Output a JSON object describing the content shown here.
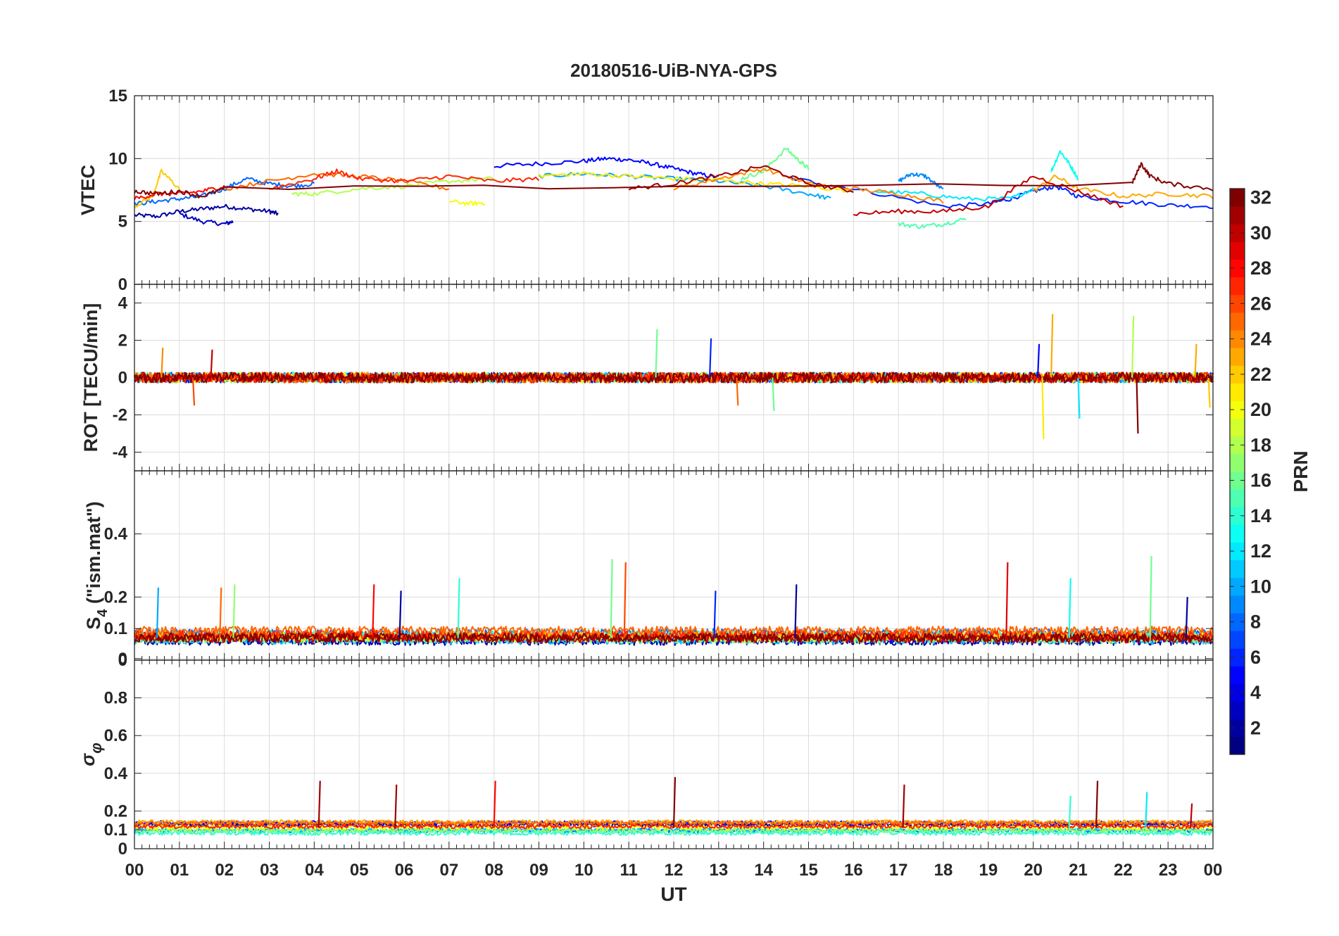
{
  "chart_data": {
    "type": "line",
    "title": "20180516-UiB-NYA-GPS",
    "xlabel": "UT",
    "x_ticks": [
      "00",
      "01",
      "02",
      "03",
      "04",
      "05",
      "06",
      "07",
      "08",
      "09",
      "10",
      "11",
      "12",
      "13",
      "14",
      "15",
      "16",
      "17",
      "18",
      "19",
      "20",
      "21",
      "22",
      "23",
      "00"
    ],
    "xlim": [
      0,
      24
    ],
    "grid": true,
    "colorbar": {
      "label": "PRN",
      "range": [
        1,
        32
      ],
      "colormap": "jet",
      "ticks": [
        "2",
        "4",
        "6",
        "8",
        "10",
        "12",
        "14",
        "16",
        "18",
        "20",
        "22",
        "24",
        "26",
        "28",
        "30",
        "32"
      ]
    },
    "panels": [
      {
        "id": "vtec",
        "ylabel": "VTEC",
        "ylim": [
          0,
          15
        ],
        "y_ticks": [
          "0",
          "5",
          "10",
          "15"
        ],
        "y_tick_values": [
          0,
          5,
          10,
          15
        ],
        "series": [
          {
            "prn": 2,
            "x": [
              0,
              0.5,
              1,
              1.5,
              2,
              2.5,
              3,
              3.2
            ],
            "y": [
              5.5,
              5.4,
              5.8,
              6.0,
              6.2,
              6.0,
              5.8,
              5.6
            ]
          },
          {
            "prn": 3,
            "x": [
              1,
              1.5,
              2,
              2.2
            ],
            "y": [
              5.6,
              5.0,
              4.8,
              5.0
            ]
          },
          {
            "prn": 5,
            "x": [
              8,
              9,
              10,
              10.5,
              11,
              11.5,
              12,
              12.5,
              13
            ],
            "y": [
              9.4,
              9.6,
              9.8,
              10.0,
              9.9,
              9.6,
              9.2,
              8.8,
              8.5
            ]
          },
          {
            "prn": 6,
            "x": [
              14.5,
              16,
              18,
              19,
              19.5,
              20,
              20.5,
              21,
              22,
              23,
              24
            ],
            "y": [
              8.5,
              7.6,
              6.2,
              6.4,
              6.8,
              7.4,
              7.8,
              7.0,
              6.6,
              6.3,
              6.2
            ]
          },
          {
            "prn": 8,
            "x": [
              0,
              0.5,
              1,
              1.5,
              2,
              2.5,
              3,
              3.5,
              4
            ],
            "y": [
              6.4,
              6.6,
              6.8,
              7.0,
              7.6,
              8.4,
              8.0,
              7.8,
              8.0
            ]
          },
          {
            "prn": 9,
            "x": [
              17,
              17.3,
              17.6,
              18
            ],
            "y": [
              8.2,
              8.8,
              8.6,
              7.5
            ]
          },
          {
            "prn": 10,
            "x": [
              9,
              10,
              11,
              12,
              13,
              14,
              15,
              15.5
            ],
            "y": [
              8.6,
              8.8,
              8.6,
              8.4,
              8.2,
              7.8,
              7.2,
              6.8
            ]
          },
          {
            "prn": 12,
            "x": [
              16.5,
              17.5,
              18.5,
              19.5,
              20
            ],
            "y": [
              7.4,
              7.2,
              6.8,
              6.8,
              7.6
            ]
          },
          {
            "prn": 13,
            "x": [
              20.4,
              20.6,
              20.8,
              21
            ],
            "y": [
              9.0,
              10.6,
              9.6,
              8.4
            ]
          },
          {
            "prn": 15,
            "x": [
              17,
              17.5,
              18,
              18.5
            ],
            "y": [
              4.8,
              4.6,
              4.8,
              5.2
            ]
          },
          {
            "prn": 16,
            "x": [
              13.5,
              14,
              14.5,
              14.8,
              15
            ],
            "y": [
              8.4,
              9.0,
              10.8,
              9.8,
              9.2
            ]
          },
          {
            "prn": 18,
            "x": [
              3.5,
              4,
              5,
              6,
              7,
              8
            ],
            "y": [
              7.2,
              7.2,
              7.6,
              7.8,
              8.2,
              8.4
            ]
          },
          {
            "prn": 20,
            "x": [
              7,
              7.5,
              7.8
            ],
            "y": [
              6.6,
              6.4,
              6.5
            ]
          },
          {
            "prn": 21,
            "x": [
              9,
              10,
              11,
              12,
              13,
              14,
              15,
              16
            ],
            "y": [
              8.6,
              8.8,
              8.6,
              8.4,
              8.3,
              8.0,
              7.8,
              7.4
            ]
          },
          {
            "prn": 22,
            "x": [
              0,
              0.4,
              0.6,
              1
            ],
            "y": [
              6.2,
              7.0,
              9.0,
              7.6
            ]
          },
          {
            "prn": 23,
            "x": [
              20,
              20.5,
              21,
              22,
              23,
              24
            ],
            "y": [
              7.4,
              8.6,
              7.6,
              7.0,
              7.2,
              7.0
            ]
          },
          {
            "prn": 24,
            "x": [
              12,
              13,
              14,
              15,
              16,
              17,
              18
            ],
            "y": [
              7.6,
              8.4,
              9.2,
              8.0,
              7.6,
              7.2,
              6.6
            ]
          },
          {
            "prn": 25,
            "x": [
              2,
              3,
              4,
              5,
              6,
              7
            ],
            "y": [
              7.6,
              8.2,
              8.8,
              8.6,
              8.2,
              7.6
            ]
          },
          {
            "prn": 27,
            "x": [
              3,
              4,
              4.5,
              5,
              6,
              7,
              8,
              9
            ],
            "y": [
              7.6,
              8.4,
              9.0,
              8.4,
              8.2,
              8.6,
              8.2,
              8.4
            ]
          },
          {
            "prn": 28,
            "x": [
              0,
              0.5,
              1,
              1.5,
              2
            ],
            "y": [
              6.8,
              7.2,
              7.2,
              7.4,
              7.8
            ]
          },
          {
            "prn": 30,
            "x": [
              16,
              17,
              18,
              19,
              20,
              21,
              22
            ],
            "y": [
              5.6,
              5.8,
              5.8,
              6.2,
              8.6,
              7.4,
              6.2
            ]
          },
          {
            "prn": 31,
            "x": [
              11,
              12,
              13,
              14,
              15,
              16
            ],
            "y": [
              7.6,
              8.0,
              8.6,
              9.4,
              8.0,
              7.4
            ]
          },
          {
            "prn": 32,
            "x": [
              0,
              0.5,
              1,
              1.5,
              2,
              22.2,
              22.4,
              22.6,
              23,
              24
            ],
            "y": [
              7.4,
              7.2,
              7.4,
              7.0,
              7.6,
              8.0,
              9.6,
              8.6,
              8.0,
              7.6
            ]
          }
        ]
      },
      {
        "id": "rot",
        "ylabel": "ROT [TECU/min]",
        "ylim": [
          -5,
          5
        ],
        "y_ticks": [
          "-4",
          "-2",
          "0",
          "2",
          "4"
        ],
        "y_tick_values": [
          -4,
          -2,
          0,
          2,
          4
        ],
        "spikes": [
          {
            "x": 0.6,
            "y": 1.6,
            "prn": 24
          },
          {
            "x": 1.3,
            "y": -1.5,
            "prn": 26
          },
          {
            "x": 1.7,
            "y": 1.5,
            "prn": 30
          },
          {
            "x": 11.6,
            "y": 2.6,
            "prn": 16
          },
          {
            "x": 12.8,
            "y": 2.1,
            "prn": 6
          },
          {
            "x": 13.4,
            "y": -1.5,
            "prn": 25
          },
          {
            "x": 14.2,
            "y": -1.8,
            "prn": 16
          },
          {
            "x": 20.1,
            "y": 1.8,
            "prn": 5
          },
          {
            "x": 20.2,
            "y": -3.3,
            "prn": 21
          },
          {
            "x": 20.4,
            "y": 3.4,
            "prn": 23
          },
          {
            "x": 21.0,
            "y": -2.2,
            "prn": 12
          },
          {
            "x": 22.2,
            "y": 3.3,
            "prn": 18
          },
          {
            "x": 22.3,
            "y": -3.0,
            "prn": 32
          },
          {
            "x": 23.6,
            "y": 1.8,
            "prn": 23
          },
          {
            "x": 23.9,
            "y": -1.6,
            "prn": 22
          }
        ]
      },
      {
        "id": "s4",
        "ylabel": "S4 (\"ism.mat\")",
        "ylim": [
          0,
          0.6
        ],
        "y_ticks": [
          "0",
          "0",
          "0.1",
          "0.2",
          "0.4"
        ],
        "y_tick_values": [
          0,
          0.005,
          0.1,
          0.2,
          0.4
        ],
        "spikes": [
          {
            "x": 0.5,
            "y": 0.23,
            "prn": 10
          },
          {
            "x": 1.9,
            "y": 0.23,
            "prn": 25
          },
          {
            "x": 2.2,
            "y": 0.24,
            "prn": 17
          },
          {
            "x": 5.3,
            "y": 0.24,
            "prn": 28
          },
          {
            "x": 5.9,
            "y": 0.22,
            "prn": 2
          },
          {
            "x": 7.2,
            "y": 0.26,
            "prn": 14
          },
          {
            "x": 10.6,
            "y": 0.32,
            "prn": 16
          },
          {
            "x": 10.9,
            "y": 0.31,
            "prn": 26
          },
          {
            "x": 12.9,
            "y": 0.22,
            "prn": 6
          },
          {
            "x": 14.7,
            "y": 0.24,
            "prn": 2
          },
          {
            "x": 19.4,
            "y": 0.31,
            "prn": 29
          },
          {
            "x": 20.8,
            "y": 0.26,
            "prn": 13
          },
          {
            "x": 22.6,
            "y": 0.33,
            "prn": 16
          },
          {
            "x": 23.4,
            "y": 0.2,
            "prn": 2
          }
        ]
      },
      {
        "id": "sigma_phi",
        "ylabel": "σφ",
        "ylim": [
          0,
          1
        ],
        "y_ticks": [
          "0",
          "0.1",
          "0.2",
          "0.4",
          "0.6",
          "0.8"
        ],
        "y_tick_values": [
          0,
          0.1,
          0.2,
          0.4,
          0.6,
          0.8
        ],
        "spikes": [
          {
            "x": 4.1,
            "y": 0.36,
            "prn": 31
          },
          {
            "x": 5.8,
            "y": 0.34,
            "prn": 31
          },
          {
            "x": 8.0,
            "y": 0.36,
            "prn": 28
          },
          {
            "x": 12.0,
            "y": 0.38,
            "prn": 32
          },
          {
            "x": 17.1,
            "y": 0.34,
            "prn": 31
          },
          {
            "x": 20.8,
            "y": 0.28,
            "prn": 14
          },
          {
            "x": 21.4,
            "y": 0.36,
            "prn": 32
          },
          {
            "x": 22.5,
            "y": 0.3,
            "prn": 12
          },
          {
            "x": 23.5,
            "y": 0.24,
            "prn": 30
          }
        ]
      }
    ]
  }
}
